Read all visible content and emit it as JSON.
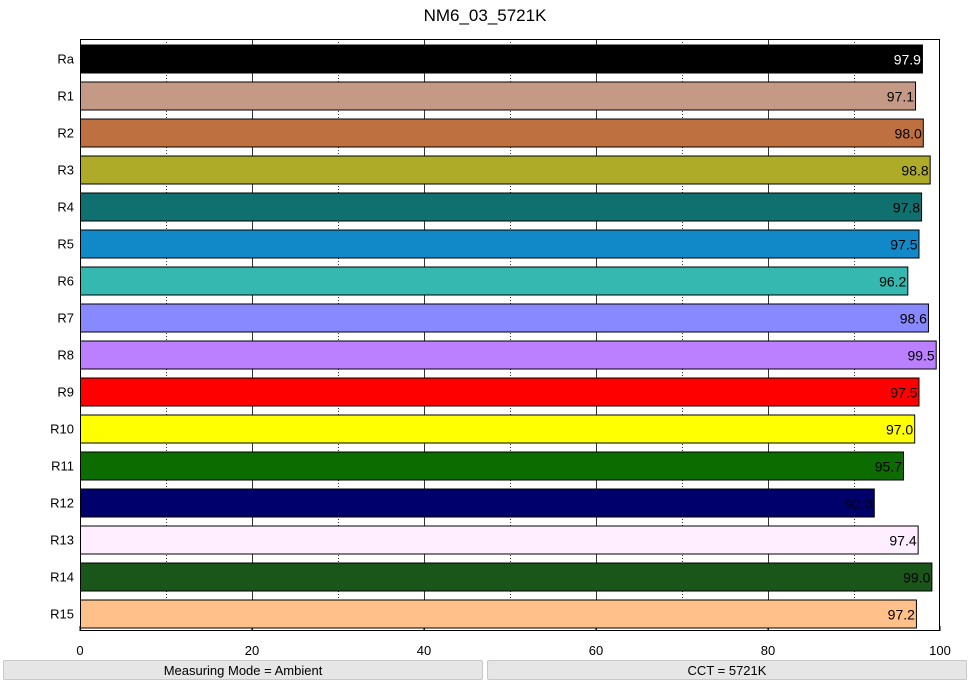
{
  "title": "NM6_03_5721K",
  "chart_data": {
    "type": "bar",
    "orientation": "horizontal",
    "title": "NM6_03_5721K",
    "xlabel": "",
    "ylabel": "",
    "xlim": [
      0,
      100
    ],
    "xticks": [
      0,
      20,
      40,
      60,
      80,
      100
    ],
    "grid": true,
    "categories": [
      "Ra",
      "R1",
      "R2",
      "R3",
      "R4",
      "R5",
      "R6",
      "R7",
      "R8",
      "R9",
      "R10",
      "R11",
      "R12",
      "R13",
      "R14",
      "R15"
    ],
    "values": [
      97.9,
      97.1,
      98.0,
      98.8,
      97.8,
      97.5,
      96.2,
      98.6,
      99.5,
      97.5,
      97.0,
      95.7,
      92.3,
      97.4,
      99.0,
      97.2
    ],
    "labels": [
      "97.9",
      "97.1",
      "98.0",
      "98.8",
      "97.8",
      "97.5",
      "96.2",
      "98.6",
      "99.5",
      "97.5",
      "97.0",
      "95.7",
      "92.3",
      "97.4",
      "99.0",
      "97.2"
    ],
    "colors": [
      "#000000",
      "#c49a86",
      "#bf7041",
      "#adab28",
      "#107070",
      "#1188c8",
      "#35b8b0",
      "#8888ff",
      "#bb80ff",
      "#ff0000",
      "#ffff00",
      "#0c6c00",
      "#00006c",
      "#ffeeff",
      "#1a5519",
      "#ffc08a"
    ],
    "label_colors": [
      "#ffffff",
      "#000000",
      "#000000",
      "#000000",
      "#000000",
      "#000000",
      "#000000",
      "#000000",
      "#000000",
      "#000000",
      "#000000",
      "#000000",
      "#000000",
      "#000000",
      "#000000",
      "#000000"
    ]
  },
  "status": {
    "left": "Measuring Mode = Ambient",
    "right": "CCT = 5721K"
  }
}
